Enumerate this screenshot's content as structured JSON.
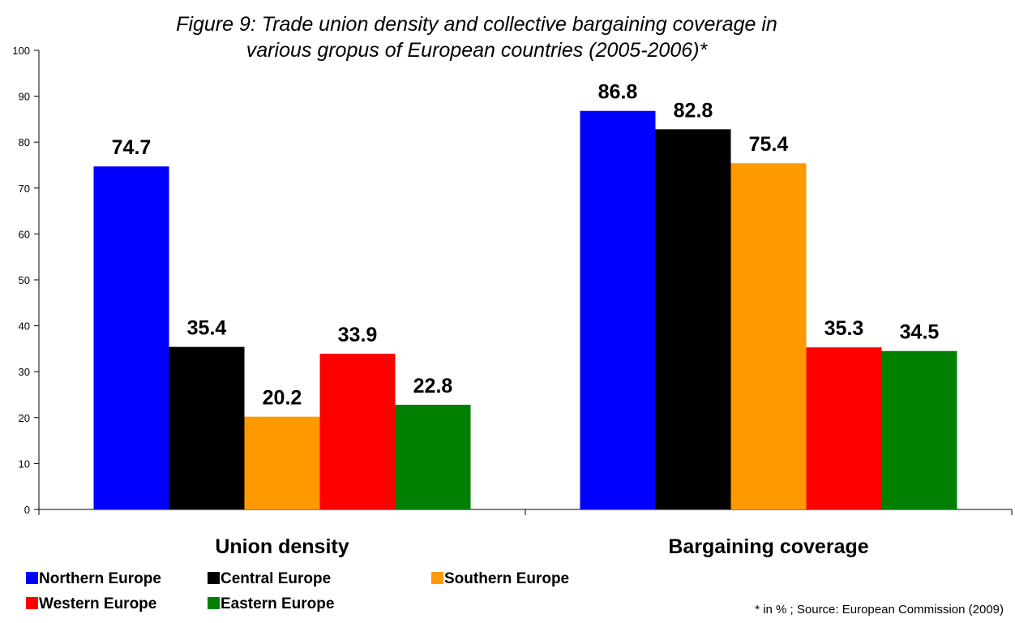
{
  "chart_data": {
    "type": "bar",
    "title_line1": "Figure 9:  Trade union density and collective bargaining coverage in",
    "title_line2": "various gropus of European countries (2005-2006)*",
    "categories": [
      "Union density",
      "Bargaining coverage"
    ],
    "series": [
      {
        "name": "Northern Europe",
        "color": "#0000ff",
        "values": [
          74.7,
          86.8
        ]
      },
      {
        "name": "Central Europe",
        "color": "#000000",
        "values": [
          35.4,
          82.8
        ]
      },
      {
        "name": "Southern Europe",
        "color": "#ff9900",
        "values": [
          20.2,
          75.4
        ]
      },
      {
        "name": "Western Europe",
        "color": "#ff0000",
        "values": [
          33.9,
          35.3
        ]
      },
      {
        "name": "Eastern Europe",
        "color": "#008000",
        "values": [
          22.8,
          34.5
        ]
      }
    ],
    "y_ticks": [
      "0",
      "10",
      "20",
      "30",
      "40",
      "50",
      "60",
      "70",
      "80",
      "90",
      "100"
    ],
    "ylim": [
      0,
      100
    ],
    "grid": false,
    "legend_position": "bottom-left",
    "footnote": "* in % ; Source: European Commission (2009)"
  }
}
